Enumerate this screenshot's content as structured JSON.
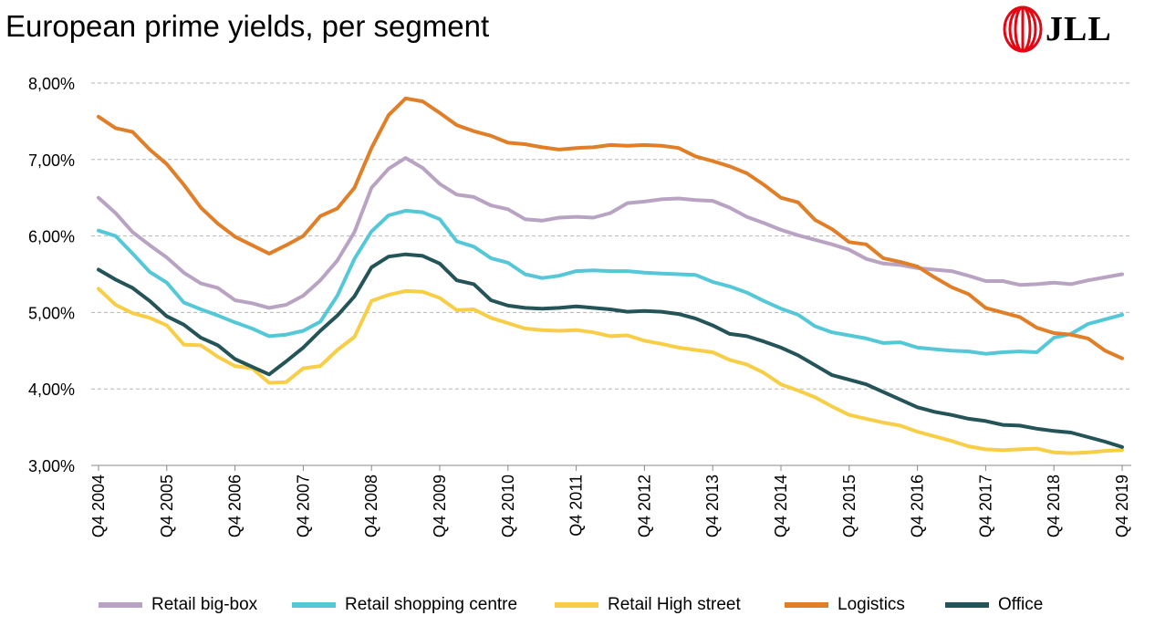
{
  "title": "European prime yields, per segment",
  "logo": {
    "text": "JLL",
    "color": "#e30613"
  },
  "chart_data": {
    "type": "line",
    "title": "European prime yields, per segment",
    "xlabel": "",
    "ylabel": "",
    "ylim": [
      3.0,
      8.0
    ],
    "y_ticks": [
      "8,00%",
      "7,00%",
      "6,00%",
      "5,00%",
      "4,00%",
      "3,00%"
    ],
    "y_tick_values": [
      8,
      7,
      6,
      5,
      4,
      3
    ],
    "x_ticks": [
      "Q4 2004",
      "Q4 2005",
      "Q4 2006",
      "Q4 2007",
      "Q4 2008",
      "Q4 2009",
      "Q4 2010",
      "Q4 2011",
      "Q4 2012",
      "Q4 2013",
      "Q4 2014",
      "Q4 2015",
      "Q4 2016",
      "Q4 2017",
      "Q4 2018",
      "Q4 2019"
    ],
    "x_tick_index": [
      0,
      4,
      8,
      12,
      16,
      20,
      24,
      28,
      32,
      36,
      40,
      44,
      48,
      52,
      56,
      60
    ],
    "grid": "horizontal dashed",
    "legend_position": "bottom",
    "series": [
      {
        "name": "Retail big-box",
        "color": "#b9a3c3",
        "values": [
          6.5,
          6.3,
          6.05,
          5.88,
          5.72,
          5.52,
          5.38,
          5.32,
          5.16,
          5.12,
          5.06,
          5.1,
          5.22,
          5.42,
          5.68,
          6.05,
          6.63,
          6.88,
          7.02,
          6.89,
          6.68,
          6.54,
          6.51,
          6.4,
          6.35,
          6.22,
          6.2,
          6.24,
          6.25,
          6.24,
          6.3,
          6.43,
          6.45,
          6.48,
          6.49,
          6.47,
          6.46,
          6.37,
          6.25,
          6.17,
          6.08,
          6.01,
          5.95,
          5.89,
          5.82,
          5.7,
          5.64,
          5.62,
          5.58,
          5.56,
          5.54,
          5.48,
          5.41,
          5.41,
          5.36,
          5.37,
          5.39,
          5.37,
          5.42,
          5.46,
          5.5
        ]
      },
      {
        "name": "Retail shopping centre",
        "color": "#55c8d8",
        "values": [
          6.07,
          6.0,
          5.77,
          5.53,
          5.39,
          5.13,
          5.04,
          4.96,
          4.87,
          4.79,
          4.69,
          4.71,
          4.76,
          4.88,
          5.22,
          5.7,
          6.06,
          6.27,
          6.33,
          6.31,
          6.22,
          5.93,
          5.86,
          5.71,
          5.65,
          5.5,
          5.45,
          5.48,
          5.54,
          5.55,
          5.54,
          5.54,
          5.52,
          5.51,
          5.5,
          5.49,
          5.4,
          5.34,
          5.26,
          5.15,
          5.05,
          4.97,
          4.82,
          4.74,
          4.7,
          4.66,
          4.6,
          4.61,
          4.54,
          4.52,
          4.5,
          4.49,
          4.46,
          4.48,
          4.49,
          4.48,
          4.67,
          4.72,
          4.85,
          4.91,
          4.97
        ]
      },
      {
        "name": "Retail High street",
        "color": "#f7ce46",
        "values": [
          5.31,
          5.1,
          4.99,
          4.93,
          4.83,
          4.58,
          4.57,
          4.42,
          4.3,
          4.27,
          4.08,
          4.09,
          4.27,
          4.3,
          4.51,
          4.68,
          5.15,
          5.23,
          5.28,
          5.27,
          5.19,
          5.03,
          5.04,
          4.93,
          4.86,
          4.79,
          4.77,
          4.76,
          4.77,
          4.74,
          4.69,
          4.7,
          4.63,
          4.59,
          4.54,
          4.51,
          4.48,
          4.38,
          4.32,
          4.21,
          4.06,
          3.98,
          3.89,
          3.77,
          3.66,
          3.61,
          3.56,
          3.52,
          3.44,
          3.38,
          3.32,
          3.25,
          3.21,
          3.2,
          3.21,
          3.22,
          3.17,
          3.16,
          3.17,
          3.19,
          3.2
        ]
      },
      {
        "name": "Logistics",
        "color": "#e17e28",
        "values": [
          7.56,
          7.41,
          7.36,
          7.13,
          6.94,
          6.67,
          6.37,
          6.16,
          5.99,
          5.88,
          5.77,
          5.88,
          6.0,
          6.26,
          6.36,
          6.63,
          7.15,
          7.58,
          7.8,
          7.76,
          7.61,
          7.45,
          7.37,
          7.31,
          7.22,
          7.2,
          7.16,
          7.13,
          7.15,
          7.16,
          7.19,
          7.18,
          7.19,
          7.18,
          7.15,
          7.04,
          6.98,
          6.91,
          6.82,
          6.67,
          6.5,
          6.44,
          6.21,
          6.09,
          5.92,
          5.89,
          5.71,
          5.66,
          5.6,
          5.46,
          5.33,
          5.24,
          5.06,
          5.0,
          4.94,
          4.8,
          4.73,
          4.71,
          4.66,
          4.5,
          4.4
        ]
      },
      {
        "name": "Office",
        "color": "#245457",
        "values": [
          5.56,
          5.43,
          5.32,
          5.15,
          4.95,
          4.84,
          4.67,
          4.57,
          4.39,
          4.29,
          4.19,
          4.36,
          4.54,
          4.76,
          4.96,
          5.21,
          5.59,
          5.73,
          5.76,
          5.74,
          5.64,
          5.42,
          5.37,
          5.16,
          5.09,
          5.06,
          5.05,
          5.06,
          5.08,
          5.06,
          5.04,
          5.01,
          5.02,
          5.01,
          4.98,
          4.92,
          4.83,
          4.72,
          4.69,
          4.62,
          4.54,
          4.44,
          4.31,
          4.18,
          4.12,
          4.06,
          3.96,
          3.86,
          3.76,
          3.7,
          3.66,
          3.61,
          3.58,
          3.53,
          3.52,
          3.48,
          3.45,
          3.43,
          3.37,
          3.31,
          3.24
        ]
      }
    ]
  }
}
